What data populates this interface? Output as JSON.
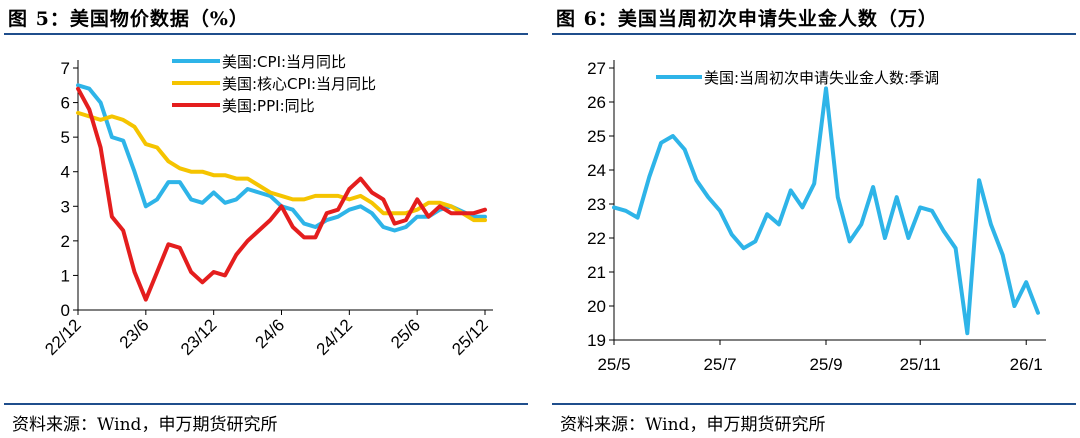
{
  "left_panel": {
    "figure_title": "图 5：美国物价数据（%）",
    "source": "资料来源：Wind，申万期货研究所"
  },
  "right_panel": {
    "figure_title": "图 6：美国当周初次申请失业金人数（万）",
    "source": "资料来源：Wind，申万期货研究所"
  },
  "chart_data": [
    {
      "type": "line",
      "title": "",
      "xlabel": "",
      "ylabel": "",
      "x": [
        "22/12",
        "23/1",
        "23/2",
        "23/3",
        "23/4",
        "23/5",
        "23/6",
        "23/7",
        "23/8",
        "23/9",
        "23/10",
        "23/11",
        "23/12",
        "24/1",
        "24/2",
        "24/3",
        "24/4",
        "24/5",
        "24/6",
        "24/7",
        "24/8",
        "24/9",
        "24/10",
        "24/11",
        "24/12",
        "25/1",
        "25/2",
        "25/3",
        "25/4",
        "25/5",
        "25/6",
        "25/7",
        "25/8",
        "25/9",
        "25/10",
        "25/11",
        "25/12"
      ],
      "x_tick_labels": [
        "22/12",
        "23/6",
        "23/12",
        "24/6",
        "24/12",
        "25/6",
        "25/12"
      ],
      "ylim": [
        0,
        7
      ],
      "y_ticks": [
        0,
        1,
        2,
        3,
        4,
        5,
        6,
        7
      ],
      "grid": false,
      "legend_position": "top-right",
      "series": [
        {
          "name": "美国:CPI:当月同比",
          "color": "#2eb4e8",
          "values": [
            6.5,
            6.4,
            6.0,
            5.0,
            4.9,
            4.0,
            3.0,
            3.2,
            3.7,
            3.7,
            3.2,
            3.1,
            3.4,
            3.1,
            3.2,
            3.5,
            3.4,
            3.3,
            3.0,
            2.9,
            2.5,
            2.4,
            2.6,
            2.7,
            2.9,
            3.0,
            2.8,
            2.4,
            2.3,
            2.4,
            2.7,
            2.7,
            2.9,
            3.0,
            null,
            2.7,
            2.7
          ]
        },
        {
          "name": "美国:核心CPI:当月同比",
          "color": "#f5c400",
          "values": [
            5.7,
            5.6,
            5.5,
            5.6,
            5.5,
            5.3,
            4.8,
            4.7,
            4.3,
            4.1,
            4.0,
            4.0,
            3.9,
            3.9,
            3.8,
            3.8,
            3.6,
            3.4,
            3.3,
            3.2,
            3.2,
            3.3,
            3.3,
            3.3,
            3.2,
            3.3,
            3.1,
            2.8,
            2.8,
            2.8,
            2.9,
            3.1,
            3.1,
            3.0,
            null,
            2.6,
            2.6
          ]
        },
        {
          "name": "美国:PPI:同比",
          "color": "#e41e1e",
          "values": [
            6.4,
            5.8,
            4.7,
            2.7,
            2.3,
            1.1,
            0.3,
            1.1,
            1.9,
            1.8,
            1.1,
            0.8,
            1.1,
            1.0,
            1.6,
            2.0,
            2.3,
            2.6,
            3.0,
            2.4,
            2.1,
            2.1,
            2.8,
            2.9,
            3.5,
            3.8,
            3.4,
            3.2,
            2.5,
            2.6,
            3.2,
            2.7,
            3.0,
            2.8,
            null,
            2.8,
            2.9
          ]
        }
      ]
    },
    {
      "type": "line",
      "title": "",
      "xlabel": "",
      "ylabel": "",
      "x": [
        "25/5/3",
        "25/5/10",
        "25/5/17",
        "25/5/24",
        "25/5/31",
        "25/6/7",
        "25/6/14",
        "25/6/21",
        "25/6/28",
        "25/7/5",
        "25/7/12",
        "25/7/19",
        "25/7/26",
        "25/8/2",
        "25/8/9",
        "25/8/16",
        "25/8/23",
        "25/8/30",
        "25/9/6",
        "25/9/13",
        "25/9/20",
        "25/9/27",
        "25/10/4",
        "25/10/11",
        "25/10/18",
        "25/10/25",
        "25/11/1",
        "25/11/8",
        "25/11/15",
        "25/11/22",
        "25/11/29",
        "25/12/6",
        "25/12/13",
        "25/12/20",
        "25/12/27",
        "26/1/3",
        "26/1/10"
      ],
      "x_tick_labels": [
        "25/5",
        "25/7",
        "25/9",
        "25/11",
        "26/1"
      ],
      "ylim": [
        19,
        27
      ],
      "y_ticks": [
        19,
        20,
        21,
        22,
        23,
        24,
        25,
        26,
        27
      ],
      "grid": false,
      "legend_position": "top",
      "series": [
        {
          "name": "美国:当周初次申请失业金人数:季调",
          "color": "#2eb4e8",
          "values": [
            22.9,
            22.8,
            22.6,
            23.8,
            24.8,
            25.0,
            24.6,
            23.7,
            23.2,
            22.8,
            22.1,
            21.7,
            21.9,
            22.7,
            22.4,
            23.4,
            22.9,
            23.6,
            26.4,
            23.2,
            21.9,
            22.4,
            23.5,
            22.0,
            23.2,
            22.0,
            22.9,
            22.8,
            22.2,
            21.7,
            19.2,
            23.7,
            22.4,
            21.5,
            20.0,
            20.7,
            19.8
          ]
        }
      ]
    }
  ]
}
